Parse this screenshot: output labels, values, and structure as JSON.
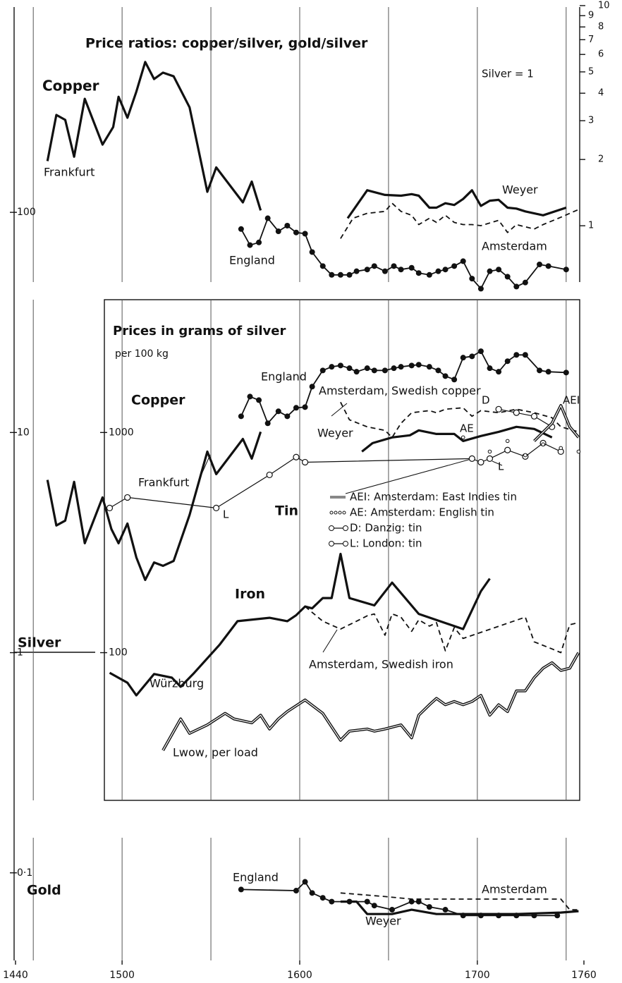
{
  "chart_data": {
    "type": "line",
    "title": "Price ratios: copper/silver, gold/silver",
    "annotations": [
      "Silver = 1",
      "Copper",
      "Prices in grams of silver",
      "per 100 kg",
      "Copper",
      "Tin",
      "Iron",
      "Silver",
      "Gold",
      "D",
      "AEI",
      "AE",
      "L",
      "L"
    ],
    "xlim": [
      1440,
      1760
    ],
    "xticks": [
      1440,
      1500,
      1600,
      1700,
      1760
    ],
    "xgrid": [
      1450,
      1500,
      1550,
      1600,
      1650,
      1700,
      1750
    ],
    "log_scale": true,
    "ylim": [
      0.04,
      856
    ],
    "yticks": [
      100,
      10,
      1,
      {
        "value": 0.1,
        "label": "0·1"
      }
    ],
    "y2lim": [
      4,
      85600
    ],
    "y2ticks": [
      1000,
      100
    ],
    "y3lim": [
      0.00046,
      9.85
    ],
    "y3ticks": [
      1,
      2,
      3,
      4,
      5,
      6,
      7,
      8,
      9,
      10
    ],
    "series": [
      {
        "name": "Frankfurt",
        "axis": "y",
        "style": "thick",
        "color": "#111",
        "x": [
          1458,
          1463,
          1468,
          1473,
          1479,
          1489,
          1495,
          1498,
          1503,
          1508,
          1513,
          1518,
          1523,
          1529,
          1538,
          1548,
          1553,
          1568,
          1573,
          1578
        ],
        "values": [
          171,
          277,
          263,
          179,
          328,
          203,
          244,
          335,
          269,
          353,
          482,
          403,
          431,
          415,
          300,
          124,
          160,
          111,
          138,
          102
        ]
      },
      {
        "name": "England",
        "axis": "y",
        "style": "dots",
        "color": "#111",
        "x": [
          1567,
          1572,
          1577,
          1582,
          1588,
          1593,
          1598,
          1603,
          1607,
          1613,
          1618,
          1623,
          1628,
          1632,
          1638,
          1642,
          1648,
          1653,
          1657,
          1663,
          1667,
          1673,
          1678,
          1682,
          1687,
          1692,
          1697,
          1702,
          1707,
          1712,
          1717,
          1722,
          1727,
          1735,
          1740,
          1750
        ],
        "values": [
          84,
          71,
          73,
          94,
          82,
          87,
          81,
          80,
          66,
          57,
          52,
          52,
          52,
          54,
          55,
          57,
          54,
          57,
          55,
          56,
          53,
          52,
          54,
          55,
          57,
          60,
          50,
          45,
          54,
          55,
          51,
          46,
          48,
          58,
          57,
          55
        ]
      },
      {
        "name": "Weyer",
        "axis": "y",
        "style": "thick",
        "color": "#111",
        "x": [
          1627,
          1638,
          1648,
          1657,
          1663,
          1667,
          1673,
          1677,
          1682,
          1687,
          1692,
          1697,
          1702,
          1707,
          1712,
          1717,
          1722,
          1727,
          1737,
          1750
        ],
        "values": [
          94,
          126,
          120,
          119,
          121,
          119,
          105,
          105,
          110,
          108,
          115,
          126,
          107,
          113,
          114,
          105,
          104,
          101,
          97,
          105
        ]
      },
      {
        "name": "Amsterdam",
        "axis": "y",
        "style": "dashed",
        "color": "#111",
        "x": [
          1623,
          1630,
          1638,
          1648,
          1652,
          1657,
          1663,
          1667,
          1673,
          1677,
          1682,
          1687,
          1692,
          1697,
          1702,
          1712,
          1717,
          1722,
          1732,
          1737,
          1747,
          1757
        ],
        "values": [
          76,
          94,
          99,
          101,
          110,
          101,
          97,
          88,
          94,
          90,
          97,
          90,
          88,
          88,
          87,
          92,
          81,
          88,
          84,
          88,
          95,
          103
        ]
      },
      {
        "name": "England",
        "axis": "y2",
        "style": "dots",
        "color": "#111",
        "x": [
          1567,
          1572,
          1577,
          1582,
          1588,
          1593,
          1598,
          1603,
          1607,
          1613,
          1618,
          1623,
          1628,
          1632,
          1638,
          1642,
          1648,
          1653,
          1657,
          1663,
          1667,
          1673,
          1678,
          1682,
          1687,
          1692,
          1697,
          1702,
          1707,
          1712,
          1717,
          1722,
          1727,
          1735,
          1740,
          1750
        ],
        "values": [
          1185,
          1456,
          1403,
          1101,
          1248,
          1185,
          1295,
          1304,
          1616,
          1914,
          1988,
          2015,
          1959,
          1888,
          1959,
          1914,
          1914,
          1959,
          1988,
          2015,
          2032,
          1988,
          1914,
          1804,
          1740,
          2188,
          2218,
          2339,
          1959,
          1888,
          2108,
          2252,
          2252,
          1914,
          1888,
          1872
        ]
      },
      {
        "name": "Frankfurt",
        "axis": "y2",
        "style": "thick",
        "color": "#111",
        "x": [
          1458,
          1463,
          1468,
          1473,
          1479,
          1489,
          1494,
          1498,
          1503,
          1508,
          1513,
          1518,
          1523,
          1529,
          1538,
          1548,
          1553,
          1568,
          1573,
          1578
        ],
        "values": [
          609,
          378,
          398,
          597,
          314,
          507,
          364,
          314,
          386,
          271,
          214,
          257,
          248,
          261,
          422,
          819,
          647,
          935,
          761,
          1007
        ]
      },
      {
        "name": "Weyer",
        "axis": "y2",
        "style": "thick",
        "color": "#111",
        "x": [
          1635,
          1641,
          1652,
          1662,
          1667,
          1677,
          1687,
          1692,
          1702,
          1712,
          1722,
          1732,
          1742
        ],
        "values": [
          819,
          895,
          950,
          971,
          1023,
          985,
          985,
          915,
          964,
          1007,
          1061,
          1038,
          950
        ]
      },
      {
        "name": "Amsterdam, Swedish copper",
        "axis": "y2",
        "style": "dashed",
        "color": "#111",
        "x": [
          1623,
          1628,
          1638,
          1648,
          1652,
          1657,
          1663,
          1673,
          1677,
          1682,
          1692,
          1697,
          1702,
          1712,
          1722,
          1732,
          1742,
          1747,
          1757
        ],
        "values": [
          1374,
          1142,
          1061,
          1023,
          950,
          1101,
          1230,
          1257,
          1230,
          1276,
          1295,
          1185,
          1257,
          1230,
          1276,
          1230,
          1167,
          1061,
          1007
        ]
      },
      {
        "name": "L: London: tin",
        "axis": "y2",
        "style": "circles",
        "color": "#111",
        "x": [
          1493,
          1503,
          1553,
          1583,
          1598,
          1603,
          1697,
          1702,
          1707,
          1717,
          1727,
          1737,
          1747
        ],
        "values": [
          454,
          507,
          454,
          642,
          773,
          733,
          761,
          733,
          761,
          832,
          778,
          895,
          819
        ]
      },
      {
        "name": "D: Danzig: tin",
        "axis": "y2",
        "style": "circles",
        "color": "#111",
        "x": [
          1712,
          1722,
          1732,
          1742
        ],
        "values": [
          1276,
          1230,
          1185,
          1061
        ]
      },
      {
        "name": "AE: Amsterdam: English tin",
        "axis": "y2",
        "style": "small-circles",
        "color": "#111",
        "x": [
          1692,
          1707,
          1717,
          1727,
          1737,
          1747,
          1757
        ],
        "values": [
          950,
          819,
          915,
          789,
          883,
          850,
          819
        ]
      },
      {
        "name": "AEI: Amsterdam: East Indies tin",
        "axis": "y2",
        "style": "double",
        "color": "#111",
        "x": [
          1732,
          1742,
          1747,
          1752,
          1757
        ],
        "values": [
          915,
          1101,
          1327,
          1061,
          950
        ]
      },
      {
        "name": "Würzburg",
        "axis": "y2",
        "style": "thick",
        "color": "#111",
        "x": [
          1493,
          1503,
          1508,
          1518,
          1528,
          1533,
          1540,
          1555,
          1565,
          1583,
          1593,
          1598,
          1603,
          1607,
          1613,
          1618,
          1623,
          1628,
          1642,
          1652,
          1667,
          1692,
          1702,
          1707
        ],
        "values": [
          81,
          73,
          64,
          80,
          77,
          70,
          80,
          109,
          139,
          144,
          139,
          148,
          162,
          159,
          177,
          177,
          281,
          177,
          164,
          208,
          150,
          128,
          190,
          217
        ]
      },
      {
        "name": "Amsterdam, Swedish iron",
        "axis": "y2",
        "style": "dashed",
        "color": "#111",
        "x": [
          1603,
          1613,
          1623,
          1632,
          1638,
          1642,
          1648,
          1652,
          1657,
          1663,
          1667,
          1673,
          1677,
          1682,
          1687,
          1692,
          1727,
          1732,
          1742,
          1747,
          1752,
          1757
        ],
        "values": [
          162,
          139,
          128,
          139,
          147,
          150,
          120,
          150,
          145,
          125,
          141,
          132,
          137,
          102,
          130,
          116,
          145,
          112,
          104,
          100,
          134,
          137
        ]
      },
      {
        "name": "Lwow, per load",
        "axis": "y2",
        "style": "double",
        "color": "#111",
        "x": [
          1523,
          1533,
          1538,
          1548,
          1558,
          1563,
          1573,
          1578,
          1583,
          1588,
          1593,
          1603,
          1613,
          1623,
          1628,
          1638,
          1642,
          1648,
          1657,
          1663,
          1667,
          1673,
          1677,
          1682,
          1687,
          1692,
          1697,
          1702,
          1707,
          1712,
          1717,
          1722,
          1727,
          1732,
          1737,
          1742,
          1747,
          1752,
          1757
        ],
        "values": [
          36,
          50,
          43,
          47,
          53,
          50,
          48,
          52,
          45,
          50,
          54,
          61,
          53,
          40,
          44,
          45,
          44,
          45,
          47,
          41,
          52,
          58,
          62,
          58,
          60,
          58,
          60,
          64,
          52,
          58,
          54,
          67,
          67,
          77,
          85,
          90,
          83,
          85,
          100
        ]
      },
      {
        "name": "England",
        "axis": "y",
        "style": "dots",
        "color": "#111",
        "x": [
          1567,
          1598,
          1603,
          1607,
          1613,
          1618,
          1628,
          1638,
          1642,
          1652,
          1663,
          1667,
          1673,
          1682,
          1692,
          1702,
          1712,
          1722,
          1732,
          1745
        ],
        "values": [
          0.084,
          0.083,
          0.091,
          0.081,
          0.077,
          0.074,
          0.074,
          0.074,
          0.071,
          0.068,
          0.074,
          0.074,
          0.07,
          0.068,
          0.064,
          0.064,
          0.064,
          0.064,
          0.064,
          0.064
        ]
      },
      {
        "name": "Amsterdam",
        "axis": "y",
        "style": "dashed",
        "color": "#111",
        "x": [
          1623,
          1648,
          1663,
          1677,
          1697,
          1722,
          1747,
          1752,
          1757
        ],
        "values": [
          0.081,
          0.078,
          0.076,
          0.076,
          0.076,
          0.076,
          0.076,
          0.068,
          0.068
        ]
      },
      {
        "name": "Weyer",
        "axis": "y",
        "style": "thick",
        "color": "#111",
        "x": [
          1623,
          1632,
          1638,
          1652,
          1663,
          1677,
          1692,
          1722,
          1747,
          1757
        ],
        "values": [
          0.074,
          0.074,
          0.065,
          0.065,
          0.068,
          0.065,
          0.065,
          0.065,
          0.066,
          0.067
        ]
      }
    ]
  }
}
